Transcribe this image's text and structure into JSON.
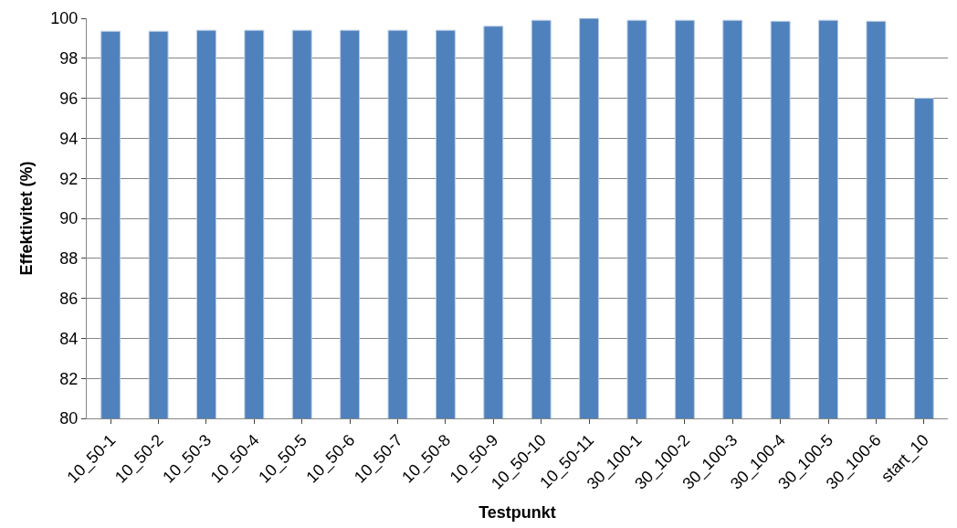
{
  "chart_data": {
    "type": "bar",
    "xlabel": "Testpunkt",
    "ylabel": "Effektivitet (%)",
    "categories": [
      "10_50-1",
      "10_50-2",
      "10_50-3",
      "10_50-4",
      "10_50-5",
      "10_50-6",
      "10_50-7",
      "10_50-8",
      "10_50-9",
      "10_50-10",
      "10_50-11",
      "30_100-1",
      "30_100-2",
      "30_100-3",
      "30_100-4",
      "30_100-5",
      "30_100-6",
      "start_10"
    ],
    "values": [
      99.35,
      99.35,
      99.4,
      99.4,
      99.4,
      99.4,
      99.4,
      99.4,
      99.6,
      99.9,
      100,
      99.9,
      99.9,
      99.9,
      99.85,
      99.9,
      99.85,
      96
    ],
    "color": "#4f81bd",
    "ylim": [
      80,
      100
    ],
    "yticks": [
      80,
      82,
      84,
      86,
      88,
      90,
      92,
      94,
      96,
      98,
      100
    ],
    "grid": "y",
    "legend": false
  }
}
